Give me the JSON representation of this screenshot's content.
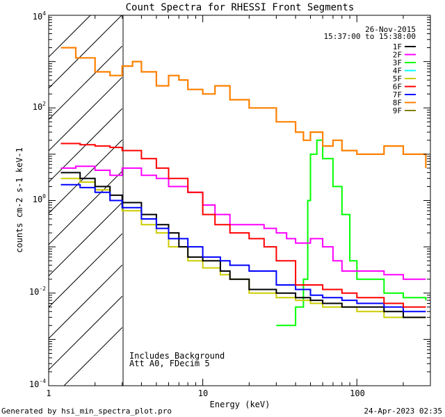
{
  "footer": {
    "generated_by": "Generated by hsi_min_spectra_plot.pro",
    "timestamp": "24-Apr-2023 02:35"
  },
  "annotations": {
    "date": "26-Nov-2015",
    "time_range": "15:37:00 to 15:38:00",
    "note_line1": "Includes Background",
    "note_line2": "Att A0, FDecim 5"
  },
  "colors": {
    "1F": "#000000",
    "2F": "#ff00ff",
    "3F": "#00ff00",
    "4F": "#00ffff",
    "5F": "#cccc00",
    "6F": "#ff0000",
    "7F": "#0000ff",
    "8F": "#ff8000",
    "9F": "#808000"
  },
  "chart_data": {
    "type": "line",
    "title": "Count Spectra for RHESSI Front Segments",
    "xlabel": "Energy (keV)",
    "ylabel": "counts cm-2 s-1 keV-1",
    "xscale": "log",
    "yscale": "log",
    "xlim": [
      1,
      300
    ],
    "ylim": [
      0.0001,
      10000
    ],
    "x_ticks": [
      {
        "value": 1,
        "label": "1"
      },
      {
        "value": 10,
        "label": "10"
      },
      {
        "value": 100,
        "label": "100"
      }
    ],
    "y_ticks": [
      {
        "value": 0.0001,
        "base": "10",
        "exp": "-4"
      },
      {
        "value": 0.01,
        "base": "10",
        "exp": "-2"
      },
      {
        "value": 1,
        "base": "10",
        "exp": "0"
      },
      {
        "value": 100,
        "base": "10",
        "exp": "2"
      },
      {
        "value": 10000,
        "base": "10",
        "exp": "4"
      }
    ],
    "hatched_region_kev": [
      1,
      3
    ],
    "legend": [
      "1F",
      "2F",
      "3F",
      "4F",
      "5F",
      "6F",
      "7F",
      "8F",
      "9F"
    ],
    "series": [
      {
        "name": "1F",
        "x": [
          1.2,
          1.6,
          2.0,
          2.5,
          3,
          4,
          5,
          6,
          7,
          8,
          10,
          13,
          15,
          20,
          30,
          40,
          50,
          60,
          80,
          100,
          150,
          200,
          280
        ],
        "y": [
          4.0,
          3.0,
          2.0,
          1.3,
          0.9,
          0.5,
          0.3,
          0.2,
          0.1,
          0.06,
          0.05,
          0.03,
          0.02,
          0.012,
          0.01,
          0.008,
          0.007,
          0.006,
          0.005,
          0.005,
          0.004,
          0.003,
          0.003
        ]
      },
      {
        "name": "2F",
        "x": [
          1.2,
          1.5,
          2,
          2.5,
          3,
          4,
          5,
          6,
          8,
          10,
          12,
          15,
          20,
          25,
          30,
          35,
          40,
          50,
          60,
          70,
          80,
          100,
          150,
          200,
          280
        ],
        "y": [
          5,
          5.5,
          4.5,
          3.5,
          5,
          3.5,
          3,
          2,
          1.5,
          0.8,
          0.5,
          0.3,
          0.3,
          0.25,
          0.2,
          0.15,
          0.12,
          0.15,
          0.1,
          0.05,
          0.03,
          0.03,
          0.025,
          0.02,
          0.02
        ]
      },
      {
        "name": "3F",
        "x": [
          30,
          40,
          45,
          48,
          50,
          55,
          60,
          70,
          80,
          90,
          100,
          150,
          200,
          280
        ],
        "y": [
          0.002,
          0.005,
          0.02,
          1,
          10,
          20,
          8,
          2,
          0.5,
          0.05,
          0.02,
          0.01,
          0.008,
          0.007
        ]
      },
      {
        "name": "4F",
        "x": [],
        "y": []
      },
      {
        "name": "5F",
        "x": [
          1.2,
          1.6,
          2.0,
          2.5,
          3,
          4,
          5,
          6,
          8,
          10,
          13,
          15,
          20,
          30,
          40,
          50,
          60,
          80,
          100,
          150,
          200,
          280
        ],
        "y": [
          3.0,
          2.5,
          1.7,
          1.0,
          0.6,
          0.3,
          0.2,
          0.1,
          0.05,
          0.035,
          0.025,
          0.02,
          0.01,
          0.008,
          0.007,
          0.006,
          0.005,
          0.005,
          0.004,
          0.003,
          0.003,
          0.003
        ]
      },
      {
        "name": "6F",
        "x": [
          1.2,
          1.6,
          2.0,
          2.5,
          3,
          4,
          5,
          6,
          8,
          10,
          12,
          15,
          20,
          25,
          30,
          40,
          50,
          60,
          80,
          100,
          150,
          200,
          280
        ],
        "y": [
          17,
          16,
          15,
          14,
          12,
          8,
          5,
          3,
          1.5,
          0.5,
          0.3,
          0.2,
          0.15,
          0.1,
          0.05,
          0.015,
          0.015,
          0.012,
          0.01,
          0.008,
          0.006,
          0.005,
          0.005
        ]
      },
      {
        "name": "7F",
        "x": [
          1.2,
          1.6,
          2.0,
          2.5,
          3,
          4,
          5,
          6,
          8,
          10,
          13,
          15,
          20,
          30,
          40,
          50,
          60,
          80,
          100,
          150,
          200,
          280
        ],
        "y": [
          2.2,
          1.9,
          1.5,
          1.0,
          0.7,
          0.4,
          0.25,
          0.15,
          0.1,
          0.06,
          0.05,
          0.04,
          0.03,
          0.015,
          0.012,
          0.009,
          0.008,
          0.007,
          0.006,
          0.005,
          0.004,
          0.004
        ]
      },
      {
        "name": "8F",
        "x": [
          1.2,
          1.5,
          2,
          2.5,
          3,
          3.5,
          4,
          5,
          6,
          7,
          8,
          10,
          12,
          15,
          20,
          25,
          30,
          40,
          45,
          50,
          60,
          70,
          80,
          100,
          150,
          200,
          280
        ],
        "y": [
          2000,
          1200,
          600,
          500,
          800,
          1000,
          600,
          300,
          500,
          400,
          250,
          200,
          300,
          150,
          100,
          100,
          50,
          30,
          20,
          30,
          15,
          20,
          12,
          10,
          15,
          10,
          5
        ]
      },
      {
        "name": "9F",
        "x": [],
        "y": []
      }
    ]
  }
}
